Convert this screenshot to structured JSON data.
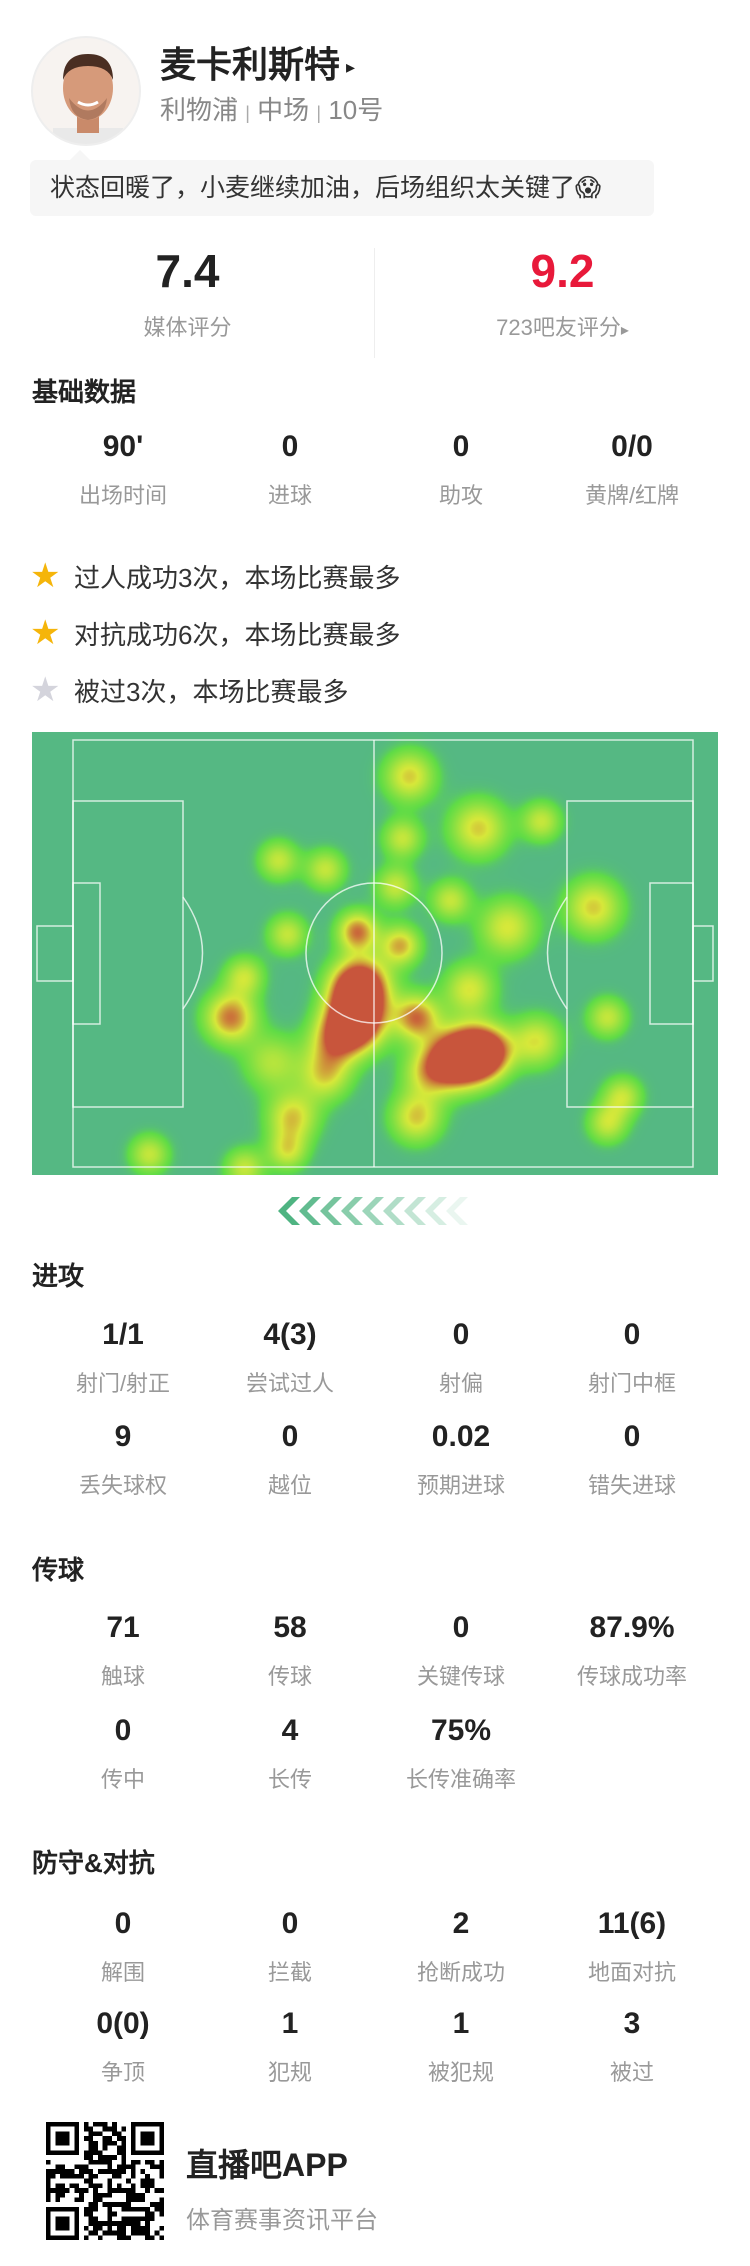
{
  "player": {
    "name": "麦卡利斯特",
    "name_arrow": "▸",
    "team": "利物浦",
    "position": "中场",
    "number": "10号",
    "separator": "|"
  },
  "comment": {
    "text": "状态回暖了，小麦继续加油，后场组织太关键了",
    "emoji": "😱"
  },
  "ratings": {
    "media": {
      "value": "7.4",
      "label": "媒体评分"
    },
    "fans": {
      "value": "9.2",
      "label": "723吧友评分",
      "arrow": "▸",
      "color": "#e8193a"
    }
  },
  "basic": {
    "title": "基础数据",
    "stats": [
      {
        "value": "90'",
        "label": "出场时间"
      },
      {
        "value": "0",
        "label": "进球"
      },
      {
        "value": "0",
        "label": "助攻"
      },
      {
        "value": "0/0",
        "label": "黄牌/红牌"
      }
    ]
  },
  "highlights": [
    {
      "icon": "star-gold",
      "text": "过人成功3次，本场比赛最多"
    },
    {
      "icon": "star-gold",
      "text": "对抗成功6次，本场比赛最多"
    },
    {
      "icon": "star-silver",
      "text": "被过3次，本场比赛最多"
    }
  ],
  "heatmap": {
    "pitch_color": "#55b883",
    "direction": "attacking-left"
  },
  "attack": {
    "title": "进攻",
    "stats": [
      {
        "value": "1/1",
        "label": "射门/射正"
      },
      {
        "value": "4(3)",
        "label": "尝试过人"
      },
      {
        "value": "0",
        "label": "射偏"
      },
      {
        "value": "0",
        "label": "射门中框"
      },
      {
        "value": "9",
        "label": "丢失球权"
      },
      {
        "value": "0",
        "label": "越位"
      },
      {
        "value": "0.02",
        "label": "预期进球"
      },
      {
        "value": "0",
        "label": "错失进球"
      }
    ]
  },
  "passing": {
    "title": "传球",
    "stats": [
      {
        "value": "71",
        "label": "触球"
      },
      {
        "value": "58",
        "label": "传球"
      },
      {
        "value": "0",
        "label": "关键传球"
      },
      {
        "value": "87.9%",
        "label": "传球成功率"
      },
      {
        "value": "0",
        "label": "传中"
      },
      {
        "value": "4",
        "label": "长传"
      },
      {
        "value": "75%",
        "label": "长传准确率"
      }
    ]
  },
  "defense": {
    "title": "防守&对抗",
    "stats": [
      {
        "value": "0",
        "label": "解围"
      },
      {
        "value": "0",
        "label": "拦截"
      },
      {
        "value": "2",
        "label": "抢断成功"
      },
      {
        "value": "11(6)",
        "label": "地面对抗"
      },
      {
        "value": "0(0)",
        "label": "争顶"
      },
      {
        "value": "1",
        "label": "犯规"
      },
      {
        "value": "1",
        "label": "被犯规"
      },
      {
        "value": "3",
        "label": "被过"
      }
    ]
  },
  "footer": {
    "app_name": "直播吧APP",
    "tagline": "体育赛事资讯平台"
  }
}
